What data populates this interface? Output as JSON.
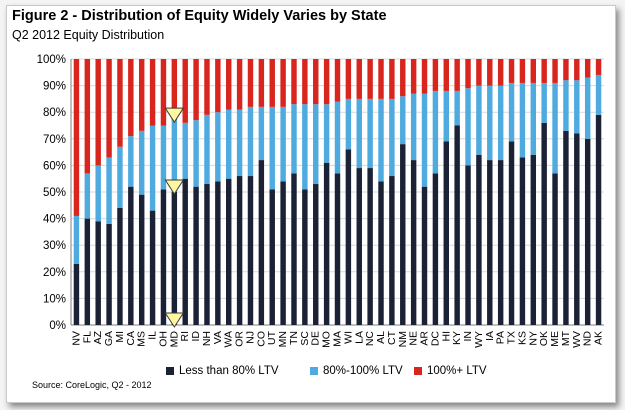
{
  "title": "Figure 2 - Distribution of Equity Widely Varies by State",
  "subtitle": "Q2 2012 Equity Distribution",
  "source": "Source: CoreLogic, Q2 - 2012",
  "colors": {
    "less_than_80": "#1b2235",
    "between_80_100": "#4eaadf",
    "over_100": "#d8261f",
    "marker": "#fff7a0"
  },
  "chart_data": {
    "type": "bar",
    "stacked": true,
    "ylim": [
      0,
      100
    ],
    "y_ticks": [
      "0%",
      "10%",
      "20%",
      "30%",
      "40%",
      "50%",
      "60%",
      "70%",
      "80%",
      "90%",
      "100%"
    ],
    "grid": true,
    "legend_position": "bottom",
    "categories": [
      "NV",
      "FL",
      "AZ",
      "GA",
      "MI",
      "CA",
      "MS",
      "IL",
      "OH",
      "MD",
      "RI",
      "ID",
      "NH",
      "VA",
      "WA",
      "OR",
      "NJ",
      "CO",
      "UT",
      "MN",
      "TN",
      "SC",
      "DE",
      "MO",
      "MA",
      "WI",
      "LA",
      "NC",
      "AL",
      "CT",
      "NM",
      "NE",
      "AR",
      "DC",
      "HI",
      "KY",
      "IN",
      "WY",
      "IA",
      "PA",
      "TX",
      "KS",
      "NY",
      "OK",
      "ME",
      "MT",
      "WV",
      "ND",
      "AK"
    ],
    "series": [
      {
        "name": "Less than 80% LTV",
        "values": [
          23,
          40,
          39,
          38,
          44,
          52,
          49,
          43,
          51,
          50,
          55,
          52,
          53,
          54,
          55,
          56,
          56,
          62,
          51,
          54,
          57,
          51,
          53,
          61,
          57,
          66,
          59,
          59,
          54,
          56,
          68,
          62,
          52,
          57,
          69,
          75,
          60,
          64,
          62,
          62,
          69,
          63,
          64,
          76,
          57,
          73,
          72,
          70,
          79
        ]
      },
      {
        "name": "80%-100% LTV",
        "values": [
          18,
          17,
          21,
          25,
          23,
          19,
          24,
          32,
          24,
          27,
          21,
          25,
          26,
          26,
          26,
          25,
          26,
          20,
          31,
          28,
          26,
          32,
          30,
          22,
          27,
          19,
          26,
          26,
          31,
          29,
          18,
          25,
          35,
          31,
          19,
          13,
          29,
          26,
          28,
          28,
          22,
          28,
          27,
          15,
          34,
          19,
          20,
          23,
          15
        ]
      },
      {
        "name": "100%+ LTV",
        "values": [
          59,
          43,
          40,
          37,
          33,
          29,
          27,
          25,
          25,
          23,
          24,
          23,
          21,
          20,
          19,
          19,
          18,
          18,
          18,
          18,
          17,
          17,
          17,
          17,
          16,
          15,
          15,
          15,
          15,
          15,
          14,
          13,
          13,
          12,
          12,
          12,
          11,
          10,
          10,
          10,
          9,
          9,
          9,
          9,
          9,
          8,
          8,
          7,
          6
        ]
      }
    ],
    "markers_at": "MD"
  }
}
